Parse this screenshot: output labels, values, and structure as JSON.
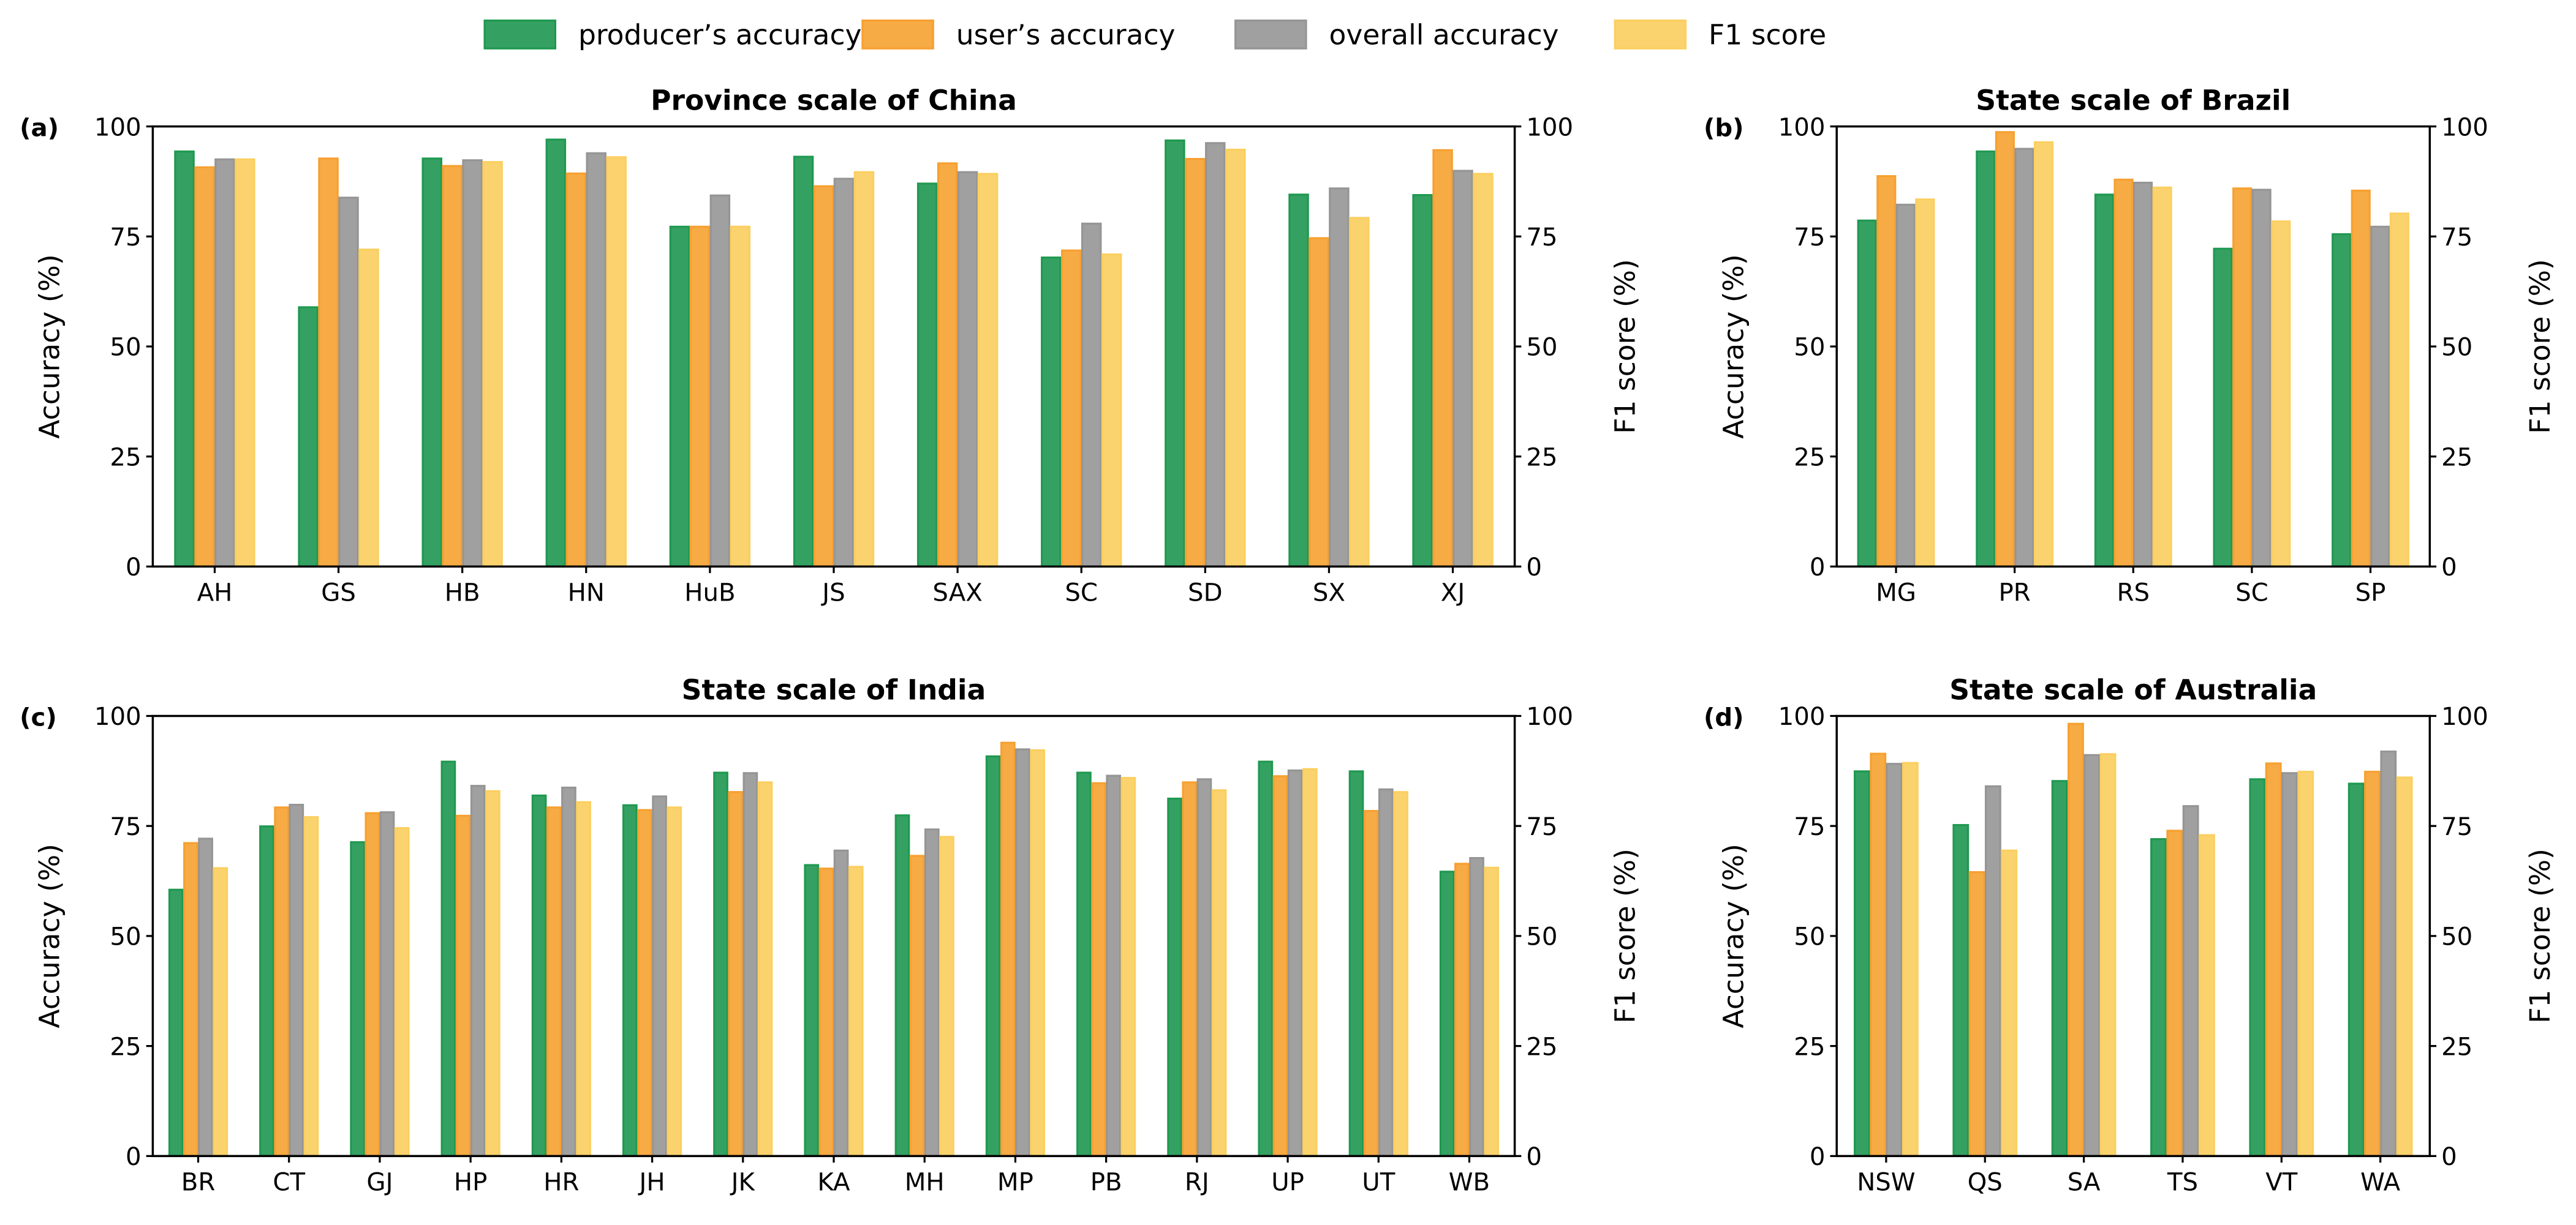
{
  "legend": {
    "items": [
      {
        "label": "producer’s accuracy",
        "color": "#34a163",
        "edge": "#1f9950"
      },
      {
        "label": "user’s accuracy",
        "color": "#f7ab45",
        "edge": "#f7a030"
      },
      {
        "label": "overall accuracy",
        "color": "#a0a0a0",
        "edge": "#959595"
      },
      {
        "label": "F1 score",
        "color": "#fbd36e",
        "edge": "#fbcf60"
      }
    ]
  },
  "chart_data": [
    {
      "type": "bar",
      "panel_label": "(a)",
      "title": "Province scale of China",
      "ylabel": "Accuracy (%)",
      "y2label": "F1 score (%)",
      "ylim": [
        0,
        100
      ],
      "yticks": [
        "0",
        "25",
        "50",
        "75",
        "100"
      ],
      "categories": [
        "AH",
        "GS",
        "HB",
        "HN",
        "HuB",
        "JS",
        "SAX",
        "SC",
        "SD",
        "SX",
        "XJ"
      ],
      "series": [
        {
          "name": "producer’s accuracy",
          "values": [
            94.5,
            59.1,
            92.9,
            97.2,
            77.4,
            93.3,
            87.2,
            70.4,
            97.0,
            84.7,
            84.6
          ]
        },
        {
          "name": "user’s accuracy",
          "values": [
            90.9,
            92.9,
            91.2,
            89.5,
            77.4,
            86.6,
            91.8,
            72.0,
            92.8,
            74.8,
            94.8
          ]
        },
        {
          "name": "overall accuracy",
          "values": [
            92.7,
            84.0,
            92.5,
            94.1,
            84.5,
            88.3,
            89.8,
            78.1,
            96.4,
            86.1,
            90.1
          ]
        },
        {
          "name": "F1 score",
          "values": [
            92.7,
            72.2,
            92.1,
            93.2,
            77.4,
            89.8,
            89.4,
            71.1,
            94.9,
            79.4,
            89.4
          ]
        }
      ]
    },
    {
      "type": "bar",
      "panel_label": "(b)",
      "title": "State scale of Brazil",
      "ylabel": "Accuracy (%)",
      "y2label": "F1 score (%)",
      "ylim": [
        0,
        100
      ],
      "yticks": [
        "0",
        "25",
        "50",
        "75",
        "100"
      ],
      "categories": [
        "MG",
        "PR",
        "RS",
        "SC",
        "SP"
      ],
      "series": [
        {
          "name": "producer’s accuracy",
          "values": [
            78.8,
            94.5,
            84.7,
            72.4,
            75.7
          ]
        },
        {
          "name": "user’s accuracy",
          "values": [
            88.9,
            98.9,
            88.1,
            86.1,
            85.6
          ]
        },
        {
          "name": "overall accuracy",
          "values": [
            82.4,
            95.1,
            87.4,
            85.8,
            77.4
          ]
        },
        {
          "name": "F1 score",
          "values": [
            83.6,
            96.6,
            86.3,
            78.6,
            80.4
          ]
        }
      ]
    },
    {
      "type": "bar",
      "panel_label": "(c)",
      "title": "State scale of India",
      "ylabel": "Accuracy (%)",
      "y2label": "F1 score (%)",
      "ylim": [
        0,
        100
      ],
      "yticks": [
        "0",
        "25",
        "50",
        "75",
        "100"
      ],
      "categories": [
        "BR",
        "CT",
        "GJ",
        "HP",
        "HR",
        "JH",
        "JK",
        "KA",
        "MH",
        "MP",
        "PB",
        "RJ",
        "UP",
        "UT",
        "WB"
      ],
      "series": [
        {
          "name": "producer’s accuracy",
          "values": [
            60.7,
            75.1,
            71.5,
            89.8,
            82.1,
            79.9,
            87.3,
            66.3,
            77.6,
            91.0,
            87.3,
            81.4,
            89.8,
            87.6,
            64.8
          ]
        },
        {
          "name": "user’s accuracy",
          "values": [
            71.3,
            79.4,
            78.1,
            77.5,
            79.4,
            78.8,
            82.9,
            65.5,
            68.4,
            94.1,
            84.9,
            85.1,
            86.5,
            78.6,
            66.6
          ]
        },
        {
          "name": "overall accuracy",
          "values": [
            72.3,
            80.0,
            78.3,
            84.3,
            83.9,
            81.9,
            87.2,
            69.6,
            74.4,
            92.6,
            86.6,
            85.8,
            87.8,
            83.5,
            67.9
          ]
        },
        {
          "name": "F1 score",
          "values": [
            65.6,
            77.2,
            74.7,
            83.1,
            80.6,
            79.4,
            85.1,
            65.9,
            72.7,
            92.4,
            86.1,
            83.3,
            88.1,
            82.9,
            65.7
          ]
        }
      ]
    },
    {
      "type": "bar",
      "panel_label": "(d)",
      "title": "State scale of Australia",
      "ylabel": "Accuracy (%)",
      "y2label": "F1 score (%)",
      "ylim": [
        0,
        100
      ],
      "yticks": [
        "0",
        "25",
        "50",
        "75",
        "100"
      ],
      "categories": [
        "NSW",
        "QS",
        "SA",
        "TS",
        "VT",
        "WA"
      ],
      "series": [
        {
          "name": "producer’s accuracy",
          "values": [
            87.6,
            75.4,
            85.4,
            72.2,
            85.8,
            84.8
          ]
        },
        {
          "name": "user’s accuracy",
          "values": [
            91.6,
            64.7,
            98.4,
            74.1,
            89.4,
            87.5
          ]
        },
        {
          "name": "overall accuracy",
          "values": [
            89.3,
            84.2,
            91.3,
            79.7,
            87.2,
            92.1
          ]
        },
        {
          "name": "F1 score",
          "values": [
            89.5,
            69.6,
            91.5,
            73.1,
            87.5,
            86.2
          ]
        }
      ]
    }
  ]
}
